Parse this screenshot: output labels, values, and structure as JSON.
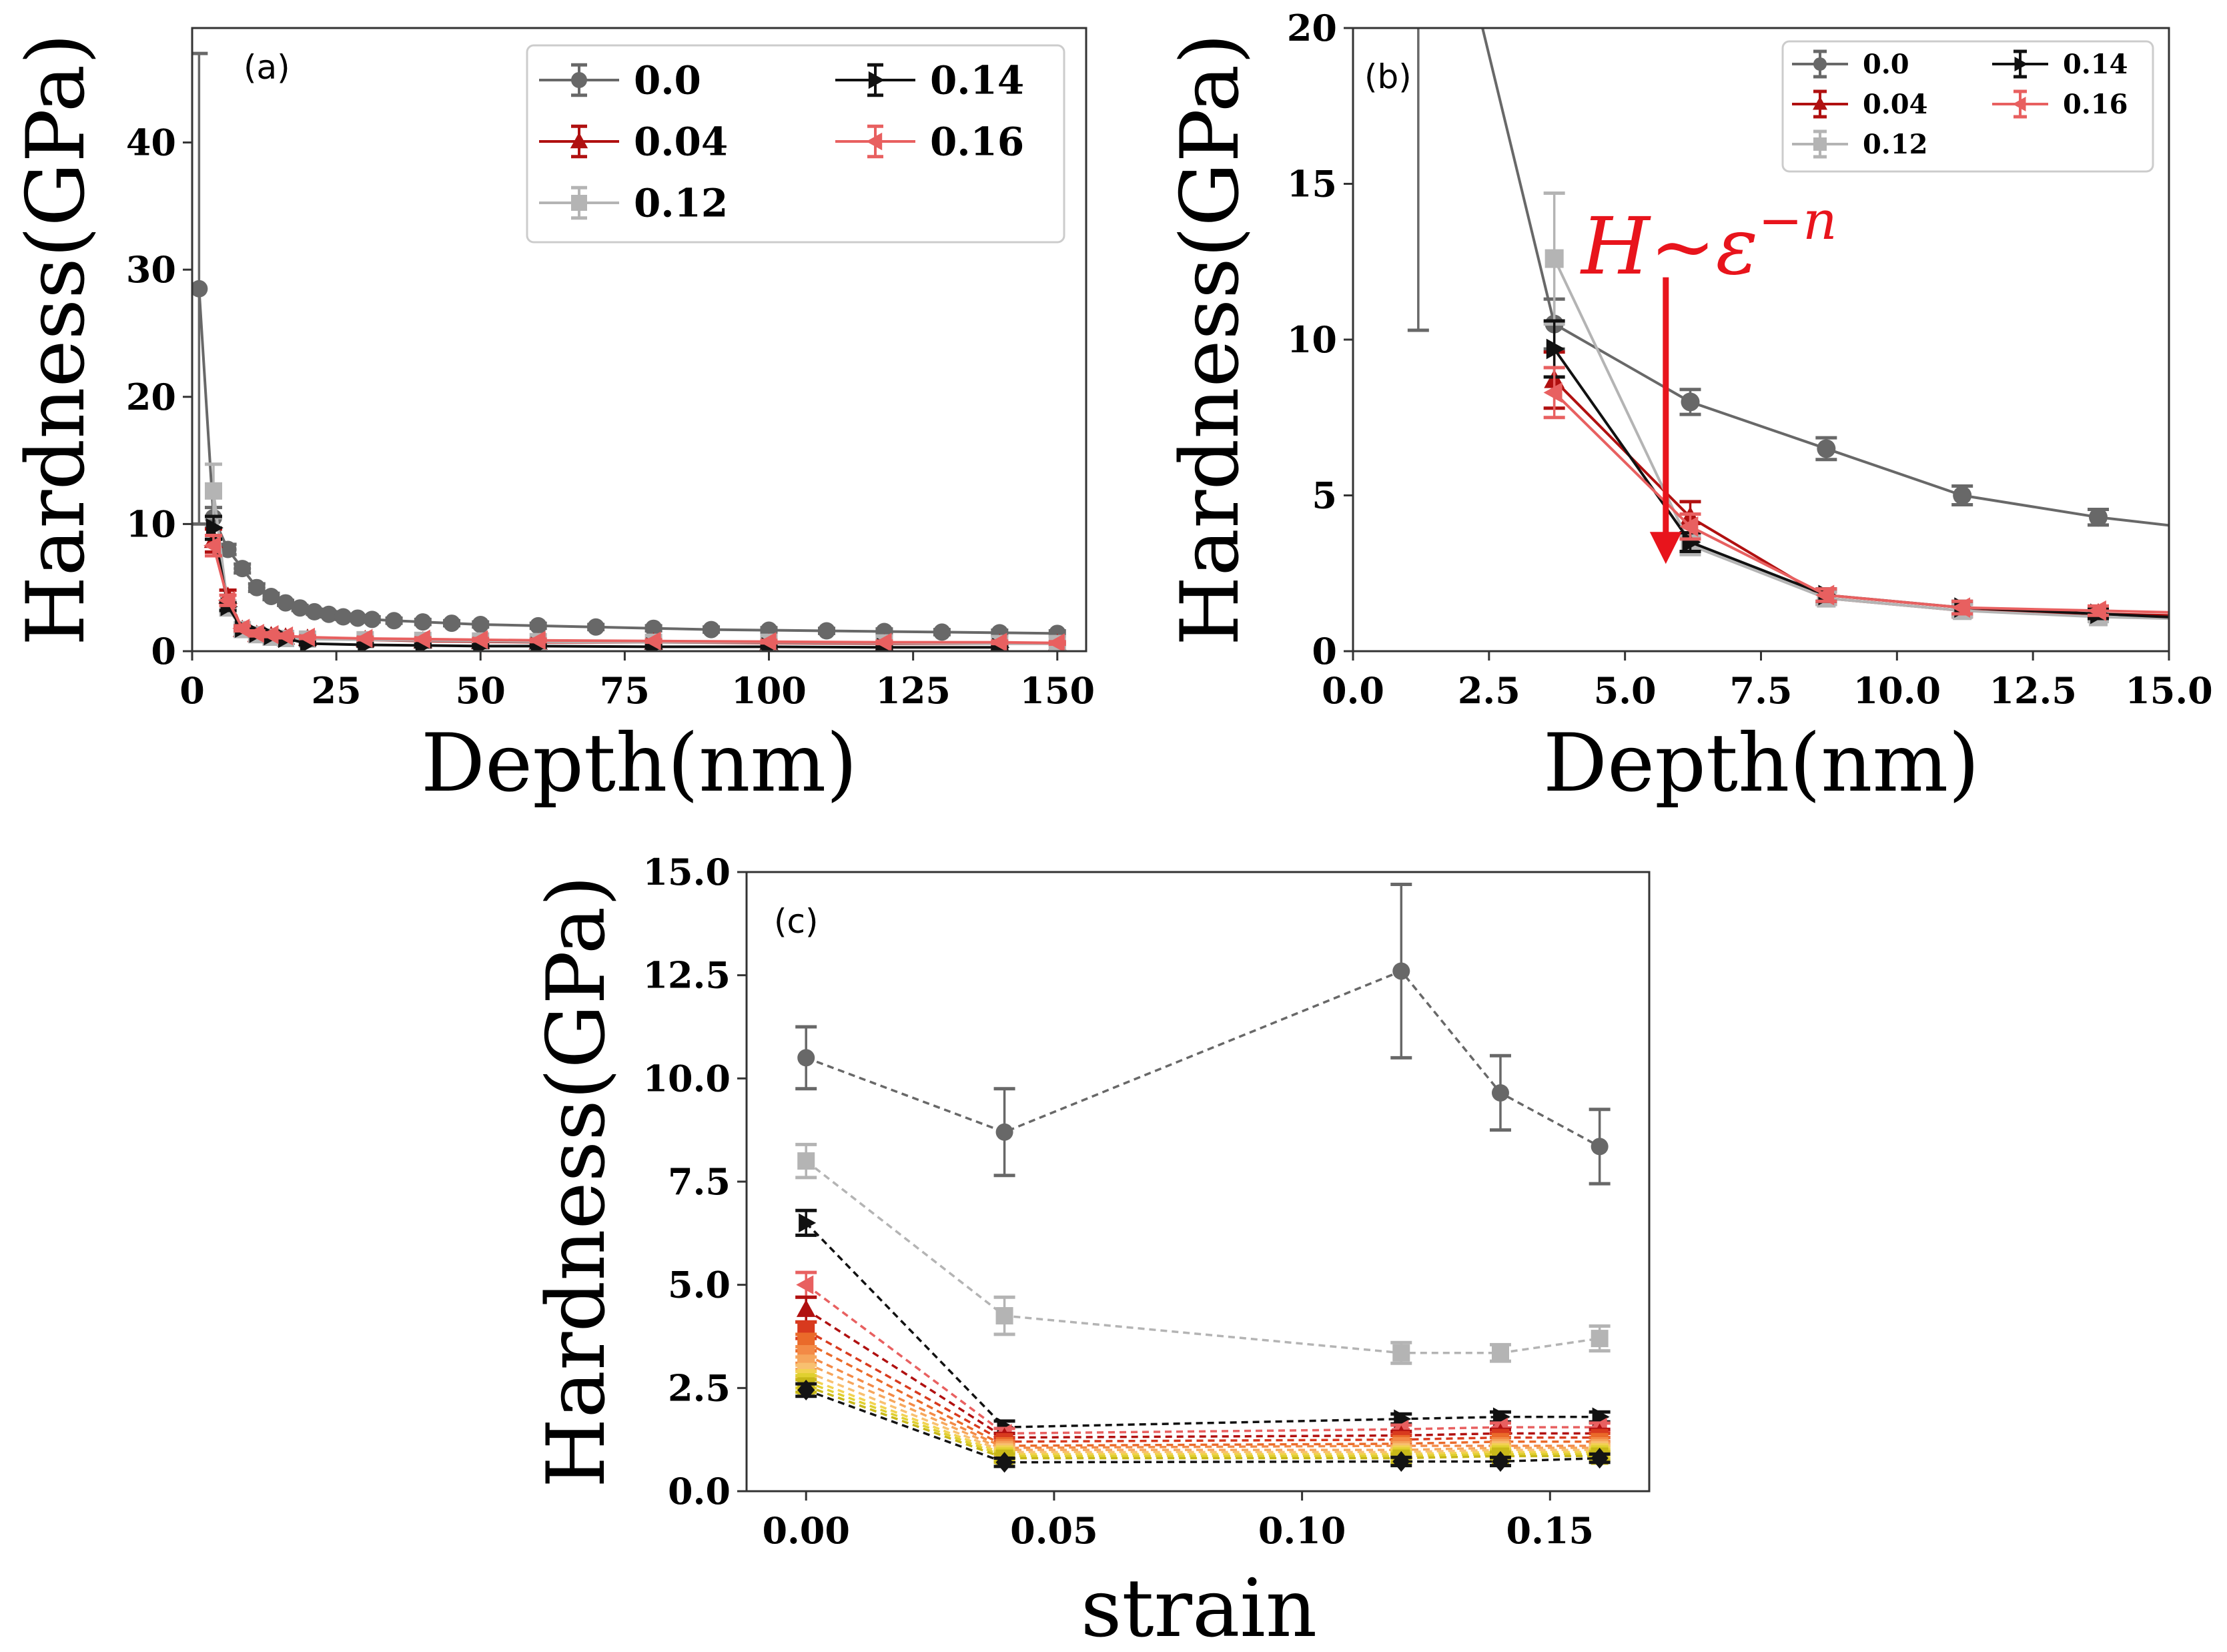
{
  "chart_data": [
    {
      "id": "a",
      "type": "line",
      "panel_label": "(a)",
      "xlabel": "Depth(nm)",
      "ylabel": "Hardness(GPa)",
      "xlim": [
        0,
        155
      ],
      "ylim": [
        0,
        49
      ],
      "xticks": [
        0,
        25,
        50,
        75,
        100,
        125,
        150
      ],
      "yticks": [
        0,
        10,
        20,
        30,
        40
      ],
      "grid": false,
      "legend": {
        "placement": "top-right",
        "columns": 2
      },
      "series": [
        {
          "name": "0.0",
          "color": "#686868",
          "marker": "circle",
          "x": [
            1.2,
            3.7,
            6.2,
            8.7,
            11.2,
            13.7,
            16.2,
            18.7,
            21.2,
            23.7,
            26.2,
            28.7,
            31.2,
            35,
            40,
            45,
            50,
            60,
            70,
            80,
            90,
            100,
            110,
            120,
            130,
            140,
            150
          ],
          "y": [
            28.5,
            10.5,
            8.0,
            6.5,
            5.0,
            4.3,
            3.8,
            3.4,
            3.1,
            2.9,
            2.7,
            2.6,
            2.5,
            2.4,
            2.3,
            2.2,
            2.1,
            2.0,
            1.9,
            1.8,
            1.7,
            1.65,
            1.6,
            1.55,
            1.5,
            1.45,
            1.4
          ],
          "err": [
            18.5,
            0.8,
            0.4,
            0.35,
            0.3,
            0.25,
            0.2,
            0.2,
            0.2,
            0.2,
            0.2,
            0.2,
            0.2,
            0.2,
            0.2,
            0.2,
            0.2,
            0.2,
            0.2,
            0.2,
            0.2,
            0.2,
            0.2,
            0.2,
            0.2,
            0.2,
            0.2
          ]
        },
        {
          "name": "0.04",
          "color": "#b01010",
          "marker": "triangle-up",
          "x": [
            3.7,
            6.2,
            8.7,
            11.2,
            13.7,
            16.2,
            20,
            30,
            40,
            50,
            60,
            80,
            100,
            120,
            140,
            150
          ],
          "y": [
            8.7,
            4.3,
            1.7,
            1.3,
            1.2,
            1.1,
            1.0,
            0.9,
            0.8,
            0.75,
            0.7,
            0.7,
            0.65,
            0.6,
            0.6,
            0.6
          ],
          "err": [
            0.9,
            0.5,
            0.2,
            0.2,
            0.2,
            0.15,
            0.15,
            0.1,
            0.1,
            0.1,
            0.1,
            0.1,
            0.1,
            0.1,
            0.1,
            0.1
          ]
        },
        {
          "name": "0.12",
          "color": "#b4b4b4",
          "marker": "square",
          "x": [
            3.7,
            6.2,
            8.7,
            11.2,
            13.7,
            16.2,
            20,
            30,
            40,
            50,
            60,
            80,
            100,
            120,
            140,
            150
          ],
          "y": [
            12.6,
            3.4,
            1.7,
            1.3,
            1.1,
            1.0,
            0.95,
            0.9,
            0.85,
            0.8,
            0.75,
            0.7,
            0.7,
            0.65,
            0.6,
            0.6
          ],
          "err": [
            2.1,
            0.3,
            0.2,
            0.2,
            0.15,
            0.15,
            0.1,
            0.1,
            0.1,
            0.1,
            0.1,
            0.1,
            0.1,
            0.1,
            0.1,
            0.1
          ]
        },
        {
          "name": "0.14",
          "color": "#111111",
          "marker": "triangle-right",
          "x": [
            3.7,
            6.2,
            8.7,
            11.2,
            13.7,
            16.2,
            20,
            30,
            40,
            50,
            60,
            80,
            100,
            120,
            140
          ],
          "y": [
            9.7,
            3.5,
            1.8,
            1.4,
            1.2,
            1.0,
            0.6,
            0.5,
            0.45,
            0.4,
            0.4,
            0.35,
            0.35,
            0.3,
            0.3
          ],
          "err": [
            0.9,
            0.3,
            0.2,
            0.2,
            0.15,
            0.15,
            0.1,
            0.1,
            0.1,
            0.1,
            0.1,
            0.1,
            0.1,
            0.1,
            0.1
          ]
        },
        {
          "name": "0.16",
          "color": "#e86060",
          "marker": "triangle-left",
          "x": [
            3.7,
            6.2,
            8.7,
            11.2,
            13.7,
            16.2,
            20,
            30,
            40,
            50,
            60,
            80,
            100,
            120,
            140,
            150
          ],
          "y": [
            8.3,
            4.0,
            1.8,
            1.4,
            1.3,
            1.2,
            1.1,
            1.0,
            0.95,
            0.9,
            0.85,
            0.8,
            0.75,
            0.7,
            0.7,
            0.65
          ],
          "err": [
            0.8,
            0.4,
            0.2,
            0.2,
            0.15,
            0.15,
            0.1,
            0.1,
            0.1,
            0.1,
            0.1,
            0.1,
            0.1,
            0.1,
            0.1,
            0.1
          ]
        }
      ]
    },
    {
      "id": "b",
      "type": "line",
      "panel_label": "(b)",
      "xlabel": "Depth(nm)",
      "ylabel": "Hardness(GPa)",
      "xlim": [
        0,
        15
      ],
      "ylim": [
        0,
        20
      ],
      "xticks": [
        0.0,
        2.5,
        5.0,
        7.5,
        10.0,
        12.5,
        15.0
      ],
      "xtick_labels": [
        "0.0",
        "2.5",
        "5.0",
        "7.5",
        "10.0",
        "12.5",
        "15.0"
      ],
      "yticks": [
        0,
        5,
        10,
        15,
        20
      ],
      "grid": false,
      "legend": {
        "placement": "top-right",
        "columns": 2
      },
      "annotation": {
        "text": "H~ε",
        "superscript": "−n",
        "color": "#e8141c",
        "arrow_from": [
          5.75,
          12.0
        ],
        "arrow_to": [
          5.75,
          2.8
        ]
      },
      "series": [
        {
          "name": "0.0",
          "color": "#686868",
          "marker": "circle",
          "x": [
            1.2,
            3.7,
            6.2,
            8.7,
            11.2,
            13.7,
            16.2
          ],
          "y": [
            28.5,
            10.5,
            8.0,
            6.5,
            5.0,
            4.3,
            3.8
          ],
          "err": [
            18.2,
            0.8,
            0.4,
            0.35,
            0.3,
            0.25,
            0.2
          ]
        },
        {
          "name": "0.04",
          "color": "#b01010",
          "marker": "triangle-up",
          "x": [
            3.7,
            6.2,
            8.7,
            11.2,
            13.7,
            16.2
          ],
          "y": [
            8.7,
            4.3,
            1.7,
            1.3,
            1.2,
            1.1
          ],
          "err": [
            0.9,
            0.5,
            0.2,
            0.2,
            0.2,
            0.15
          ]
        },
        {
          "name": "0.12",
          "color": "#b4b4b4",
          "marker": "square",
          "x": [
            3.7,
            6.2,
            8.7,
            11.2,
            13.7,
            16.2
          ],
          "y": [
            12.6,
            3.4,
            1.7,
            1.3,
            1.1,
            1.0
          ],
          "err": [
            2.1,
            0.3,
            0.2,
            0.2,
            0.15,
            0.15
          ]
        },
        {
          "name": "0.14",
          "color": "#111111",
          "marker": "triangle-right",
          "x": [
            3.7,
            6.2,
            8.7,
            11.2,
            13.7,
            16.2
          ],
          "y": [
            9.7,
            3.5,
            1.8,
            1.4,
            1.2,
            1.0
          ],
          "err": [
            0.9,
            0.3,
            0.2,
            0.2,
            0.15,
            0.15
          ]
        },
        {
          "name": "0.16",
          "color": "#e86060",
          "marker": "triangle-left",
          "x": [
            3.7,
            6.2,
            8.7,
            11.2,
            13.7,
            16.2
          ],
          "y": [
            8.3,
            4.0,
            1.8,
            1.4,
            1.3,
            1.2
          ],
          "err": [
            0.8,
            0.4,
            0.2,
            0.2,
            0.15,
            0.15
          ]
        }
      ]
    },
    {
      "id": "c",
      "type": "line",
      "panel_label": "(c)",
      "xlabel": "strain",
      "ylabel": "Hardness(GPa)",
      "xlim": [
        -0.012,
        0.17
      ],
      "ylim": [
        0,
        15
      ],
      "xticks": [
        0.0,
        0.05,
        0.1,
        0.15
      ],
      "xtick_labels": [
        "0.00",
        "0.05",
        "0.10",
        "0.15"
      ],
      "yticks": [
        0.0,
        2.5,
        5.0,
        7.5,
        10.0,
        12.5,
        15.0
      ],
      "ytick_labels": [
        "0.0",
        "2.5",
        "5.0",
        "7.5",
        "10.0",
        "12.5",
        "15.0"
      ],
      "grid": false,
      "linestyle": "dashed",
      "x": [
        0.0,
        0.04,
        0.12,
        0.14,
        0.16
      ],
      "series": [
        {
          "color": "#686868",
          "marker": "circle",
          "y": [
            10.5,
            8.7,
            12.6,
            9.65,
            8.35
          ],
          "err": [
            0.75,
            1.05,
            2.1,
            0.9,
            0.9
          ]
        },
        {
          "color": "#b4b4b4",
          "marker": "square",
          "y": [
            8.0,
            4.25,
            3.35,
            3.35,
            3.7
          ],
          "err": [
            0.4,
            0.45,
            0.25,
            0.2,
            0.3
          ]
        },
        {
          "color": "#111111",
          "marker": "triangle-right",
          "y": [
            6.5,
            1.55,
            1.75,
            1.8,
            1.8
          ],
          "err": [
            0.3,
            0.15,
            0.12,
            0.12,
            0.12
          ]
        },
        {
          "color": "#e86060",
          "marker": "triangle-left",
          "y": [
            5.0,
            1.4,
            1.5,
            1.55,
            1.55
          ],
          "err": [
            0.3,
            0.12,
            0.1,
            0.1,
            0.1
          ]
        },
        {
          "color": "#b01010",
          "marker": "triangle-up",
          "y": [
            4.4,
            1.3,
            1.35,
            1.4,
            1.4
          ],
          "err": [
            0.3,
            0.1,
            0.1,
            0.1,
            0.1
          ]
        },
        {
          "color": "#d83a1e",
          "marker": "square",
          "y": [
            3.9,
            1.2,
            1.25,
            1.3,
            1.3
          ],
          "err": [
            0.2,
            0.1,
            0.1,
            0.1,
            0.1
          ]
        },
        {
          "color": "#ea6a2a",
          "marker": "square",
          "y": [
            3.6,
            1.1,
            1.15,
            1.2,
            1.2
          ],
          "err": [
            0.2,
            0.1,
            0.1,
            0.1,
            0.1
          ]
        },
        {
          "color": "#f38a46",
          "marker": "square",
          "y": [
            3.3,
            1.05,
            1.1,
            1.1,
            1.1
          ],
          "err": [
            0.2,
            0.1,
            0.1,
            0.1,
            0.1
          ]
        },
        {
          "color": "#f6a65c",
          "marker": "square",
          "y": [
            3.1,
            1.0,
            1.0,
            1.05,
            1.05
          ],
          "err": [
            0.15,
            0.1,
            0.1,
            0.1,
            0.1
          ]
        },
        {
          "color": "#f8c070",
          "marker": "square",
          "y": [
            2.9,
            0.95,
            0.95,
            1.0,
            1.0
          ],
          "err": [
            0.15,
            0.1,
            0.1,
            0.1,
            0.1
          ]
        },
        {
          "color": "#f2d250",
          "marker": "square",
          "y": [
            2.75,
            0.9,
            0.9,
            0.95,
            0.95
          ],
          "err": [
            0.15,
            0.1,
            0.1,
            0.1,
            0.1
          ]
        },
        {
          "color": "#e0d030",
          "marker": "square",
          "y": [
            2.65,
            0.85,
            0.85,
            0.9,
            0.9
          ],
          "err": [
            0.15,
            0.1,
            0.1,
            0.1,
            0.1
          ]
        },
        {
          "color": "#c8b818",
          "marker": "square",
          "y": [
            2.55,
            0.8,
            0.8,
            0.85,
            0.85
          ],
          "err": [
            0.15,
            0.1,
            0.1,
            0.1,
            0.1
          ]
        },
        {
          "color": "#141414",
          "marker": "diamond",
          "y": [
            2.45,
            0.7,
            0.72,
            0.72,
            0.8
          ],
          "err": [
            0.15,
            0.1,
            0.1,
            0.1,
            0.1
          ]
        }
      ]
    }
  ]
}
